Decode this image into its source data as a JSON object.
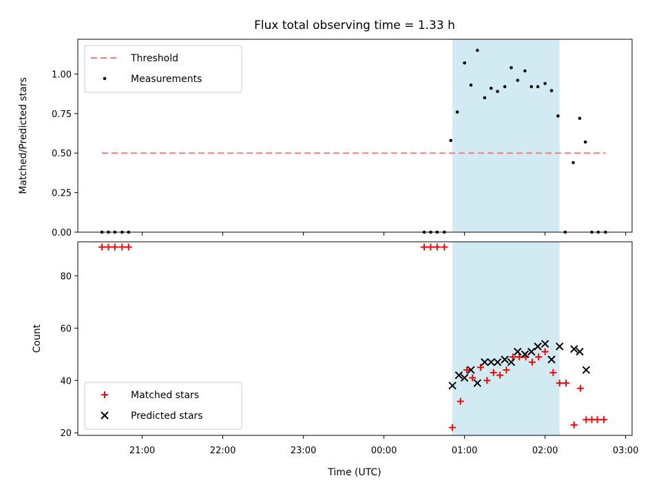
{
  "chart_data": {
    "title": "Flux total observing time = 1.33 h",
    "xlabel": "Time (UTC)",
    "x_ticks": [
      "21:00",
      "22:00",
      "23:00",
      "00:00",
      "01:00",
      "02:00",
      "03:00"
    ],
    "x_unit": "hours UTC (values after midnight shown as 24+)",
    "shaded_interval": {
      "x": [
        24.85,
        26.18
      ],
      "color": "#add8e6"
    },
    "panels": [
      {
        "type": "scatter",
        "ylabel": "Matched/Predicted stars",
        "ylim": [
          0,
          1.22
        ],
        "y_ticks": [
          "0.00",
          "0.25",
          "0.50",
          "0.75",
          "1.00"
        ],
        "legend_position": "top-left",
        "series": [
          {
            "name": "Threshold",
            "type": "line",
            "style": "dashed",
            "color": "#f08080",
            "x": [
              20.5,
              26.75
            ],
            "y": [
              0.5,
              0.5
            ]
          },
          {
            "name": "Measurements",
            "type": "scatter",
            "marker": "dot",
            "color": "#000000",
            "x": [
              20.5,
              20.58,
              20.66,
              20.75,
              20.83,
              24.5,
              24.58,
              24.66,
              24.75,
              24.83,
              24.91,
              25.0,
              25.08,
              25.16,
              25.25,
              25.33,
              25.41,
              25.5,
              25.58,
              25.66,
              25.75,
              25.83,
              25.91,
              26.0,
              26.08,
              26.16,
              26.25,
              26.35,
              26.43,
              26.5,
              26.58,
              26.66,
              26.75
            ],
            "y": [
              0,
              0,
              0,
              0,
              0,
              0,
              0,
              0,
              0,
              0.58,
              0.76,
              1.07,
              0.93,
              1.15,
              0.85,
              0.91,
              0.89,
              0.92,
              1.04,
              0.96,
              1.02,
              0.92,
              0.92,
              0.94,
              0.895,
              0.735,
              0,
              0.44,
              0.72,
              0.57,
              0,
              0,
              0
            ]
          }
        ]
      },
      {
        "type": "scatter",
        "ylabel": "Count",
        "ylim": [
          19,
          93
        ],
        "y_ticks": [
          "20",
          "40",
          "60",
          "80"
        ],
        "legend_position": "bottom-left",
        "series": [
          {
            "name": "Matched stars",
            "marker": "plus",
            "color": "#ff0000",
            "x": [
              20.5,
              20.58,
              20.66,
              20.75,
              20.83,
              24.5,
              24.58,
              24.66,
              24.75,
              24.85,
              24.95,
              25.03,
              25.1,
              25.2,
              25.28,
              25.36,
              25.44,
              25.52,
              25.6,
              25.68,
              25.76,
              25.84,
              25.92,
              26.0,
              26.1,
              26.18,
              26.26,
              26.36,
              26.44,
              26.51,
              26.58,
              26.65,
              26.73
            ],
            "y": [
              91,
              91,
              91,
              91,
              91,
              91,
              91,
              91,
              91,
              22,
              32,
              44,
              41,
              45,
              40,
              43,
              42,
              44,
              49,
              49,
              49,
              47,
              49,
              51,
              43,
              39,
              39,
              23,
              37,
              25,
              25,
              25,
              25
            ]
          },
          {
            "name": "Predicted stars",
            "marker": "x",
            "color": "#000000",
            "x": [
              24.85,
              24.93,
              25.0,
              25.08,
              25.16,
              25.25,
              25.33,
              25.41,
              25.5,
              25.58,
              25.66,
              25.75,
              25.83,
              25.91,
              26.0,
              26.08,
              26.18,
              26.36,
              26.43,
              26.51
            ],
            "y": [
              38,
              42,
              41,
              44,
              39,
              47,
              47,
              47,
              48,
              47,
              51,
              50,
              51,
              53,
              54,
              48,
              53,
              52,
              51,
              44
            ]
          }
        ]
      }
    ]
  }
}
